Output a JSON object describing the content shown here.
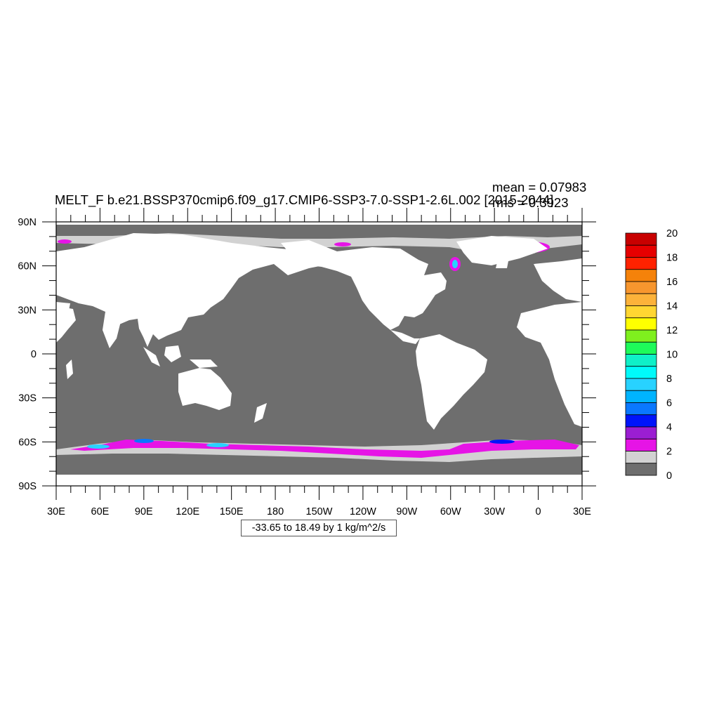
{
  "title": "MELT_F b.e21.BSSP370cmip6.f09_g17.CMIP6-SSP3-7.0-SSP1-2.6L.002 [2015-2044]",
  "stats": {
    "mean": "mean = 0.07983",
    "rms": "rms = 0.3923"
  },
  "range_label": "-33.65 to 18.49 by 1 kg/m^2/s",
  "lat_labels": [
    "90N",
    "60N",
    "30N",
    "0",
    "30S",
    "60S",
    "90S"
  ],
  "lon_labels": [
    "30E",
    "60E",
    "90E",
    "120E",
    "150E",
    "180",
    "150W",
    "120W",
    "90W",
    "60W",
    "30W",
    "0",
    "30E"
  ],
  "colorbar": {
    "labels": [
      "20",
      "18",
      "16",
      "14",
      "12",
      "10",
      "8",
      "6",
      "4",
      "2",
      "0"
    ],
    "colors": [
      "#c80000",
      "#e60000",
      "#ff2200",
      "#f5820a",
      "#f7962e",
      "#fcb23a",
      "#ffd632",
      "#ffff00",
      "#7ff01e",
      "#1efa5a",
      "#0ff0c8",
      "#00fafa",
      "#28d2ff",
      "#00b4ff",
      "#0a78ff",
      "#0014fa",
      "#9b1ed2",
      "#e614e6",
      "#d2d2d2",
      "#6e6e6e"
    ]
  },
  "colors": {
    "ocean": "#6e6e6e",
    "land": "#ffffff",
    "ice_edge": "#d2d2d2",
    "melt_low": "#e614e6",
    "melt_high": "#28d2ff"
  }
}
